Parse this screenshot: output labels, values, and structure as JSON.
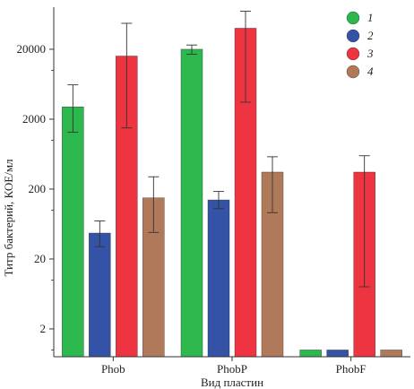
{
  "chart_data": {
    "type": "bar",
    "title": "",
    "xlabel": "Вид пластин",
    "ylabel": "Титр бактерий, КОЕ/мл",
    "yscale": "log",
    "ylim": [
      0.8,
      80000
    ],
    "yticks": [
      2,
      20,
      200,
      2000,
      20000
    ],
    "categories": [
      "Phob",
      "PhobP",
      "PhobF"
    ],
    "grid": false,
    "legend_position": "top-right",
    "series": [
      {
        "name": "1",
        "color": "#2db84d",
        "values": [
          3000,
          20000,
          1
        ],
        "errors": [
          [
            3000,
            1300,
            6200
          ],
          [
            20000,
            17000,
            23000
          ],
          [
            1,
            1,
            1
          ]
        ]
      },
      {
        "name": "2",
        "color": "#3553a6",
        "values": [
          47,
          140,
          1
        ],
        "errors": [
          [
            47,
            30,
            70
          ],
          [
            140,
            105,
            185
          ],
          [
            1,
            1,
            1
          ]
        ]
      },
      {
        "name": "3",
        "color": "#ee3440",
        "values": [
          16000,
          40000,
          350
        ],
        "errors": [
          [
            16000,
            1500,
            47000
          ],
          [
            40000,
            3500,
            70000
          ],
          [
            350,
            8,
            600
          ]
        ]
      },
      {
        "name": "4",
        "color": "#b07a5a",
        "values": [
          150,
          350,
          1
        ],
        "errors": [
          [
            150,
            48,
            300
          ],
          [
            350,
            92,
            580
          ],
          [
            1,
            1,
            1
          ]
        ]
      }
    ]
  }
}
